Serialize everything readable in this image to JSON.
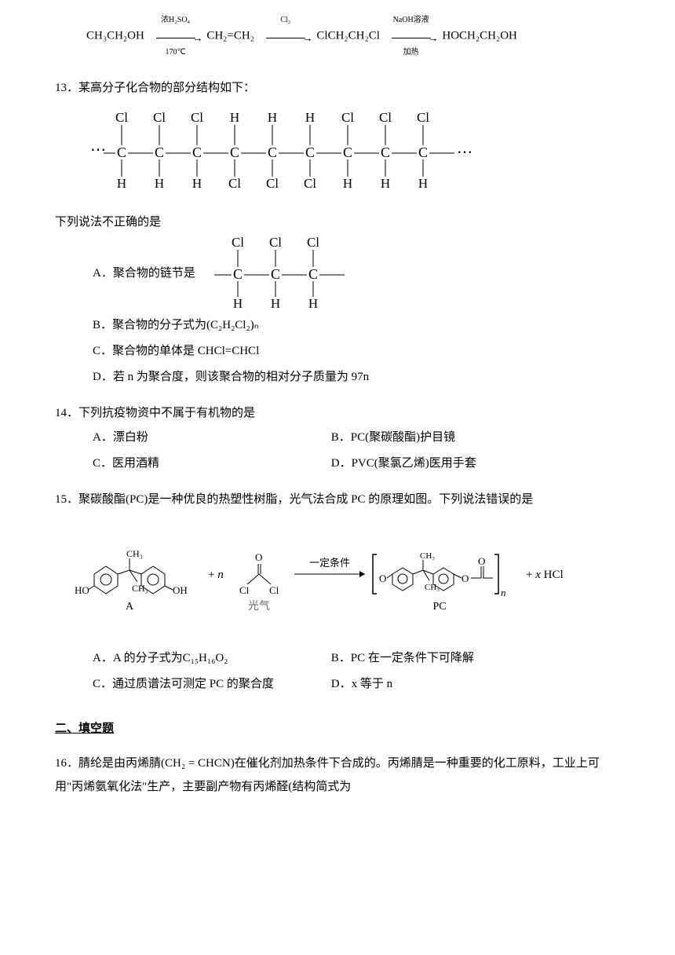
{
  "scheme_top": {
    "r1": "CH₃CH₂OH",
    "c1a": "浓H₂SO₄",
    "c1b": "170℃",
    "r2": "CH₂=CH₂",
    "c2a": "Cl₂",
    "r3": "ClCH₂CH₂Cl",
    "c3a": "NaOH溶液",
    "c3b": "加热",
    "r4": "HOCH₂CH₂OH"
  },
  "q13": {
    "num": "13．",
    "stem": "某高分子化合物的部分结构如下：",
    "tail": "下列说法不正确的是",
    "optA_label": "A．聚合物的链节是",
    "optB": "B．聚合物的分子式为(C₂H₂Cl₂)ₙ",
    "optC": "C．聚合物的单体是 CHCl=CHCl",
    "optD": "D．若 n 为聚合度，则该聚合物的相对分子质量为 97n",
    "main_chain_top": [
      "Cl",
      "Cl",
      "Cl",
      "H",
      "H",
      "H",
      "Cl",
      "Cl",
      "Cl"
    ],
    "main_chain_bot": [
      "H",
      "H",
      "H",
      "Cl",
      "Cl",
      "Cl",
      "H",
      "H",
      "H"
    ],
    "frag_top": [
      "Cl",
      "Cl",
      "Cl"
    ],
    "frag_bot": [
      "H",
      "H",
      "H"
    ]
  },
  "q14": {
    "num": "14．",
    "stem": "下列抗疫物资中不属于有机物的是",
    "A": "A．漂白粉",
    "B": "B．PC(聚碳酸酯)护目镜",
    "C": "C．医用酒精",
    "D": "D．PVC(聚氯乙烯)医用手套"
  },
  "q15": {
    "num": "15．",
    "stem": "聚碳酸酯(PC)是一种优良的热塑性树脂，光气法合成 PC 的原理如图。下列说法错误的是",
    "labelA": "A",
    "labelPhosgene": "光气",
    "labelPC": "PC",
    "cond": "一定条件",
    "plus_n": "+  n",
    "plus_x": "+ x HCl",
    "A": "A．A 的分子式为C₁₅H₁₆O₂",
    "B": "B．PC 在一定条件下可降解",
    "C": "C．通过质谱法可测定 PC 的聚合度",
    "D": "D．x 等于 n"
  },
  "section2": "二、填空题",
  "q16": {
    "num": "16．",
    "stem_part1": "腈纶是由丙烯腈(",
    "formula": "CH₂ = CHCN",
    "stem_part2": ")在催化剂加热条件下合成的。丙烯腈是一种重要的化工原料，工业上可用\"丙烯氨氧化法\"生产，主要副产物有丙烯醛(结构简式为"
  },
  "colors": {
    "text": "#000000",
    "bg": "#ffffff"
  }
}
